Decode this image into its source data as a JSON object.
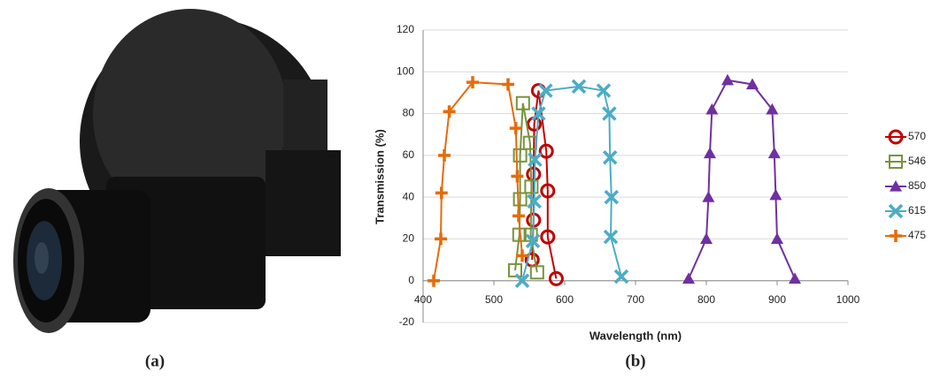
{
  "captions": [
    "(a)",
    "(b)"
  ],
  "chart_data": {
    "type": "line",
    "x_label": "Wavelength (nm)",
    "y_label": "Transmission (%)",
    "xlim": [
      400,
      1000
    ],
    "xticks": [
      400,
      500,
      600,
      700,
      800,
      900,
      1000
    ],
    "ylim": [
      -20,
      120
    ],
    "yticks": [
      -20,
      0,
      20,
      40,
      60,
      80,
      100,
      120
    ],
    "grid": true,
    "legend": "right",
    "series": [
      {
        "name": "570",
        "color": "#c00000",
        "marker": "circle",
        "x": [
          554,
          556,
          556,
          557,
          563,
          574,
          576,
          576,
          588
        ],
        "values": [
          10,
          29,
          51,
          75,
          91,
          62,
          43,
          21,
          1
        ]
      },
      {
        "name": "546",
        "color": "#77933c",
        "marker": "square",
        "x": [
          530,
          536,
          537,
          537,
          541,
          551,
          553,
          552,
          561
        ],
        "values": [
          5,
          22,
          39,
          60,
          85,
          66,
          45,
          22,
          4
        ]
      },
      {
        "name": "850",
        "color": "#7030a0",
        "marker": "triangle",
        "x": [
          775,
          800,
          803,
          805,
          808,
          830,
          865,
          893,
          896,
          898,
          900,
          925
        ],
        "values": [
          1,
          20,
          40,
          61,
          82,
          96,
          94,
          82,
          61,
          41,
          20,
          1
        ]
      },
      {
        "name": "615",
        "color": "#4bacc6",
        "marker": "x",
        "x": [
          540,
          555,
          557,
          558,
          563,
          573,
          620,
          655,
          663,
          664,
          666,
          665,
          680
        ],
        "values": [
          0,
          19,
          38,
          58,
          80,
          91,
          93,
          91,
          80,
          59,
          40,
          21,
          2
        ]
      },
      {
        "name": "475",
        "color": "#e46c0a",
        "marker": "plus",
        "x": [
          415,
          425,
          426,
          430,
          437,
          470,
          520,
          531,
          533,
          535,
          540
        ],
        "values": [
          0,
          20,
          42,
          60,
          81,
          95,
          94,
          73,
          50,
          31,
          12
        ]
      }
    ]
  }
}
